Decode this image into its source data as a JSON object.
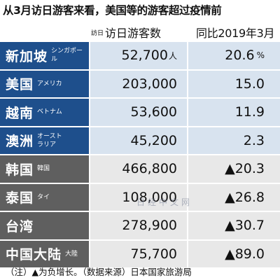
{
  "title": "从3月访日游客来看，美国等的游客超过疫情前",
  "header": {
    "col1_tag": "訪日",
    "col1_label": "访日游客数",
    "col2_label": "同比2019年3月"
  },
  "colors": {
    "highlight_label_bg": "#1e4f8c",
    "other_label_bg": "#5f5f5f",
    "highlight_cell_bg": "#d8e3ef",
    "other_cell_bg": "#e8e8e8"
  },
  "chart_data": {
    "type": "table",
    "title": "从3月访日游客来看，美国等的游客超过疫情前",
    "columns": [
      "访日游客数",
      "同比2019年3月"
    ],
    "rows": [
      {
        "name": "新加坡",
        "sub": "シンガポール",
        "visitors": "52,700",
        "visitors_value": 52700,
        "unit": "人",
        "change": "20.6",
        "change_value": 20.6,
        "change_unit": "%",
        "group": "blue"
      },
      {
        "name": "美国",
        "sub": "アメリカ",
        "visitors": "203,000",
        "visitors_value": 203000,
        "unit": "",
        "change": "15.0",
        "change_value": 15.0,
        "change_unit": "",
        "group": "blue"
      },
      {
        "name": "越南",
        "sub": "ベトナム",
        "visitors": "53,600",
        "visitors_value": 53600,
        "unit": "",
        "change": "11.9",
        "change_value": 11.9,
        "change_unit": "",
        "group": "blue"
      },
      {
        "name": "澳洲",
        "sub": "オースト\nラリア",
        "visitors": "45,200",
        "visitors_value": 45200,
        "unit": "",
        "change": "2.3",
        "change_value": 2.3,
        "change_unit": "",
        "group": "blue"
      },
      {
        "name": "韩国",
        "sub": "韓国",
        "visitors": "466,800",
        "visitors_value": 466800,
        "unit": "",
        "change": "▲20.3",
        "change_value": -20.3,
        "change_unit": "",
        "group": "gray"
      },
      {
        "name": "泰国",
        "sub": "タイ",
        "visitors": "108,000",
        "visitors_value": 108000,
        "unit": "",
        "change": "▲26.8",
        "change_value": -26.8,
        "change_unit": "",
        "group": "gray"
      },
      {
        "name": "台湾",
        "sub": "",
        "visitors": "278,900",
        "visitors_value": 278900,
        "unit": "",
        "change": "▲30.7",
        "change_value": -30.7,
        "change_unit": "",
        "group": "gray"
      },
      {
        "name": "中国大陆",
        "sub": "大陸",
        "visitors": "75,700",
        "visitors_value": 75700,
        "unit": "",
        "change": "▲89.0",
        "change_value": -89.0,
        "change_unit": "",
        "group": "gray"
      }
    ]
  },
  "watermark": "日经中文网",
  "footnote": "（注）▲为负增长。（数据来源）日本国家旅游局"
}
